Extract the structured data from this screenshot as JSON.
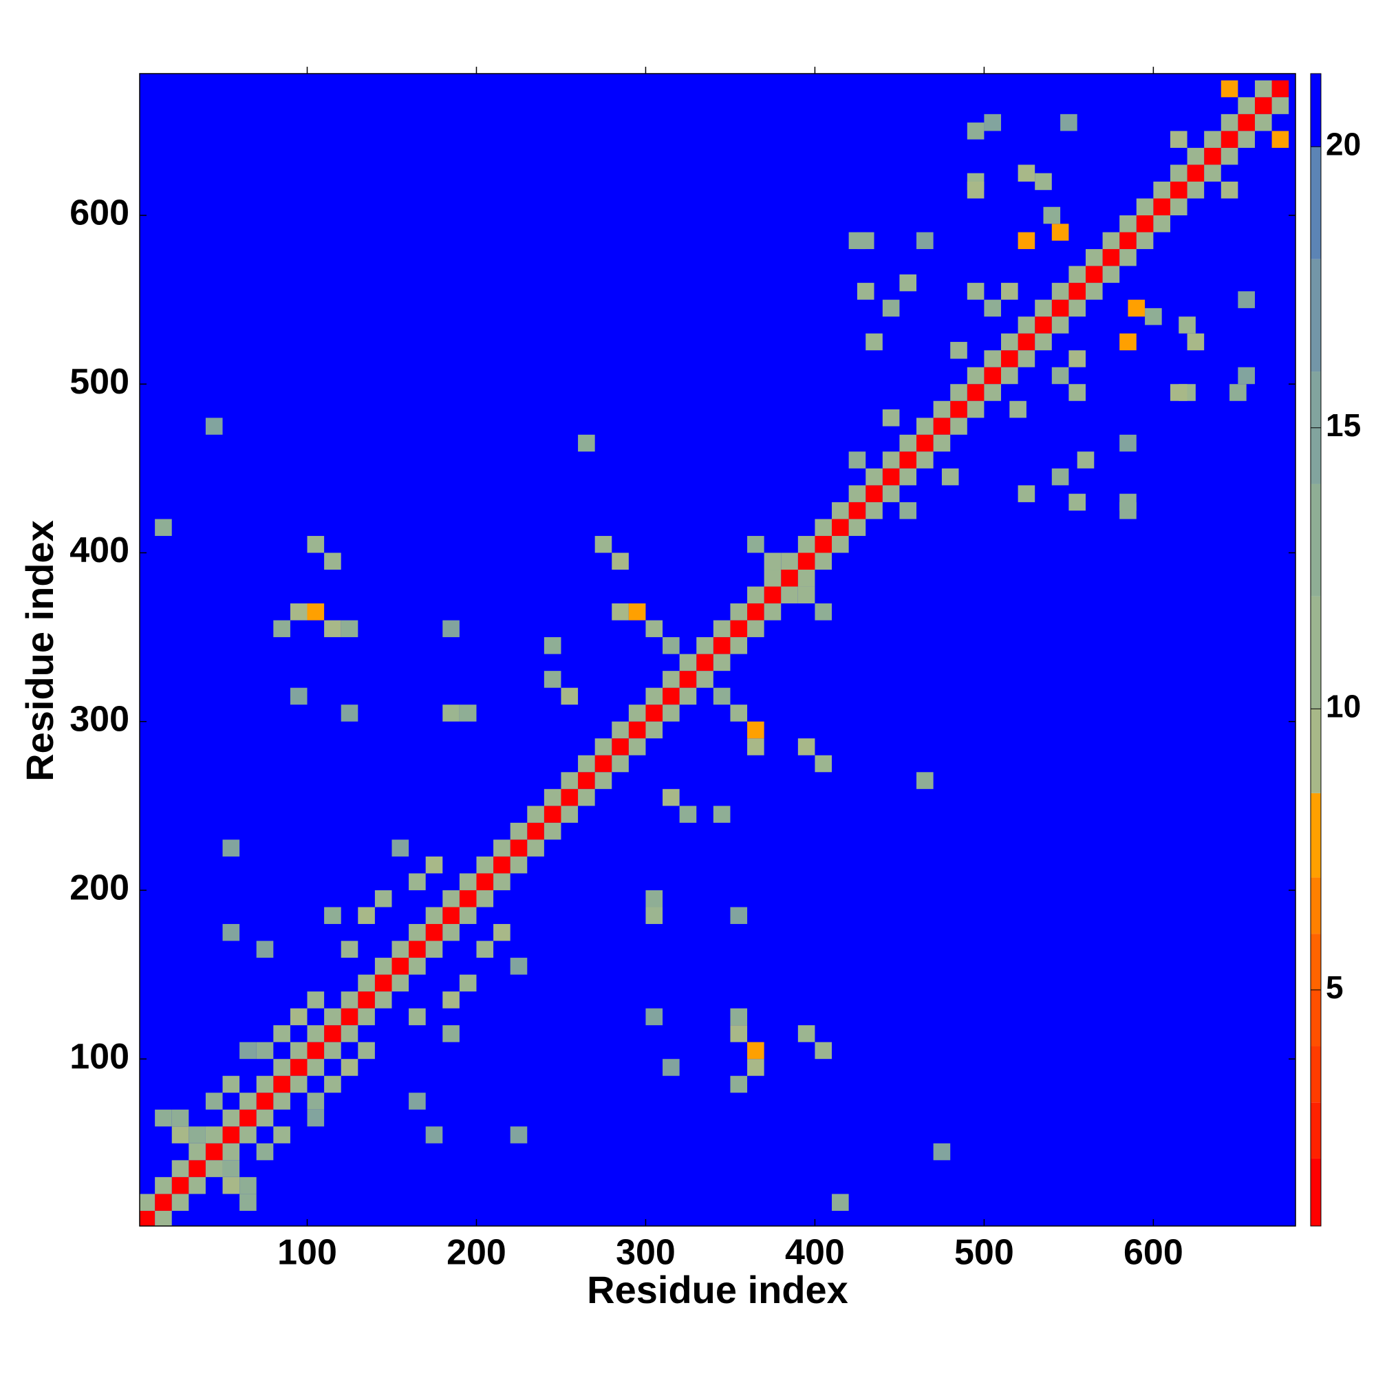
{
  "chart_data": {
    "type": "heatmap",
    "x_label": "Residue index",
    "y_label": "Residue index",
    "xlim": [
      1,
      684
    ],
    "ylim": [
      1,
      684
    ],
    "xticks": [
      100,
      200,
      300,
      400,
      500,
      600
    ],
    "yticks": [
      100,
      200,
      300,
      400,
      500,
      600
    ],
    "colorbar": {
      "levels": [
        0.8,
        2,
        3,
        4,
        5,
        6,
        7,
        8.5,
        10,
        12,
        14,
        16,
        18,
        20,
        21.3
      ],
      "colors": [
        "#ff0000",
        "#ff2200",
        "#ff3c00",
        "#ff5000",
        "#ff6400",
        "#ff8000",
        "#ffa000",
        "#a8b888",
        "#9cb590",
        "#8fae95",
        "#82a49e",
        "#7396a8",
        "#5c84b5",
        "#0000ff"
      ],
      "ticks": [
        5,
        10,
        15,
        20
      ]
    },
    "cells": [
      {
        "x": 5,
        "y": 5,
        "value": 1.5
      },
      {
        "x": 15,
        "y": 15,
        "value": 1.5
      },
      {
        "x": 25,
        "y": 25,
        "value": 1.5
      },
      {
        "x": 35,
        "y": 35,
        "value": 1.5
      },
      {
        "x": 45,
        "y": 45,
        "value": 1.5
      },
      {
        "x": 55,
        "y": 55,
        "value": 1.5
      },
      {
        "x": 65,
        "y": 65,
        "value": 1.5
      },
      {
        "x": 75,
        "y": 75,
        "value": 1.5
      },
      {
        "x": 85,
        "y": 85,
        "value": 1.5
      },
      {
        "x": 95,
        "y": 95,
        "value": 1.5
      },
      {
        "x": 105,
        "y": 105,
        "value": 1.5
      },
      {
        "x": 115,
        "y": 115,
        "value": 1.5
      },
      {
        "x": 125,
        "y": 125,
        "value": 1.5
      },
      {
        "x": 135,
        "y": 135,
        "value": 1.5
      },
      {
        "x": 145,
        "y": 145,
        "value": 1.5
      },
      {
        "x": 155,
        "y": 155,
        "value": 1.5
      },
      {
        "x": 165,
        "y": 165,
        "value": 1.5
      },
      {
        "x": 175,
        "y": 175,
        "value": 1.5
      },
      {
        "x": 185,
        "y": 185,
        "value": 1.5
      },
      {
        "x": 195,
        "y": 195,
        "value": 1.5
      },
      {
        "x": 205,
        "y": 205,
        "value": 1.5
      },
      {
        "x": 215,
        "y": 215,
        "value": 1.5
      },
      {
        "x": 225,
        "y": 225,
        "value": 1.5
      },
      {
        "x": 235,
        "y": 235,
        "value": 1.5
      },
      {
        "x": 245,
        "y": 245,
        "value": 1.5
      },
      {
        "x": 255,
        "y": 255,
        "value": 1.5
      },
      {
        "x": 265,
        "y": 265,
        "value": 1.5
      },
      {
        "x": 275,
        "y": 275,
        "value": 1.5
      },
      {
        "x": 285,
        "y": 285,
        "value": 1.5
      },
      {
        "x": 295,
        "y": 295,
        "value": 1.5
      },
      {
        "x": 305,
        "y": 305,
        "value": 1.5
      },
      {
        "x": 315,
        "y": 315,
        "value": 1.5
      },
      {
        "x": 325,
        "y": 325,
        "value": 1.5
      },
      {
        "x": 335,
        "y": 335,
        "value": 1.5
      },
      {
        "x": 345,
        "y": 345,
        "value": 1.5
      },
      {
        "x": 355,
        "y": 355,
        "value": 1.5
      },
      {
        "x": 365,
        "y": 365,
        "value": 1.5
      },
      {
        "x": 375,
        "y": 375,
        "value": 1.5
      },
      {
        "x": 385,
        "y": 385,
        "value": 1.5
      },
      {
        "x": 395,
        "y": 395,
        "value": 1.5
      },
      {
        "x": 405,
        "y": 405,
        "value": 1.5
      },
      {
        "x": 415,
        "y": 415,
        "value": 1.5
      },
      {
        "x": 425,
        "y": 425,
        "value": 1.5
      },
      {
        "x": 435,
        "y": 435,
        "value": 1.5
      },
      {
        "x": 445,
        "y": 445,
        "value": 1.5
      },
      {
        "x": 455,
        "y": 455,
        "value": 1.5
      },
      {
        "x": 465,
        "y": 465,
        "value": 1.5
      },
      {
        "x": 475,
        "y": 475,
        "value": 1.5
      },
      {
        "x": 485,
        "y": 485,
        "value": 1.5
      },
      {
        "x": 495,
        "y": 495,
        "value": 1.5
      },
      {
        "x": 505,
        "y": 505,
        "value": 1.5
      },
      {
        "x": 515,
        "y": 515,
        "value": 1.5
      },
      {
        "x": 525,
        "y": 525,
        "value": 1.5
      },
      {
        "x": 535,
        "y": 535,
        "value": 1.5
      },
      {
        "x": 545,
        "y": 545,
        "value": 1.5
      },
      {
        "x": 555,
        "y": 555,
        "value": 1.5
      },
      {
        "x": 565,
        "y": 565,
        "value": 1.5
      },
      {
        "x": 575,
        "y": 575,
        "value": 1.5
      },
      {
        "x": 585,
        "y": 585,
        "value": 1.5
      },
      {
        "x": 595,
        "y": 595,
        "value": 1.5
      },
      {
        "x": 605,
        "y": 605,
        "value": 1.5
      },
      {
        "x": 615,
        "y": 615,
        "value": 1.5
      },
      {
        "x": 625,
        "y": 625,
        "value": 1.5
      },
      {
        "x": 635,
        "y": 635,
        "value": 1.5
      },
      {
        "x": 645,
        "y": 645,
        "value": 1.5
      },
      {
        "x": 655,
        "y": 655,
        "value": 1.5
      },
      {
        "x": 665,
        "y": 665,
        "value": 1.5
      },
      {
        "x": 675,
        "y": 675,
        "value": 1.5
      },
      {
        "x": 5,
        "y": 15,
        "value": 11
      },
      {
        "x": 15,
        "y": 25,
        "value": 11
      },
      {
        "x": 25,
        "y": 35,
        "value": 11
      },
      {
        "x": 35,
        "y": 45,
        "value": 11
      },
      {
        "x": 45,
        "y": 55,
        "value": 11
      },
      {
        "x": 55,
        "y": 65,
        "value": 11
      },
      {
        "x": 65,
        "y": 75,
        "value": 11
      },
      {
        "x": 75,
        "y": 85,
        "value": 11
      },
      {
        "x": 85,
        "y": 95,
        "value": 11
      },
      {
        "x": 95,
        "y": 105,
        "value": 11
      },
      {
        "x": 105,
        "y": 115,
        "value": 11
      },
      {
        "x": 115,
        "y": 125,
        "value": 11
      },
      {
        "x": 125,
        "y": 135,
        "value": 11
      },
      {
        "x": 135,
        "y": 145,
        "value": 11
      },
      {
        "x": 145,
        "y": 155,
        "value": 11
      },
      {
        "x": 155,
        "y": 165,
        "value": 11
      },
      {
        "x": 165,
        "y": 175,
        "value": 11
      },
      {
        "x": 175,
        "y": 185,
        "value": 11
      },
      {
        "x": 185,
        "y": 195,
        "value": 11
      },
      {
        "x": 195,
        "y": 205,
        "value": 11
      },
      {
        "x": 205,
        "y": 215,
        "value": 11
      },
      {
        "x": 215,
        "y": 225,
        "value": 11
      },
      {
        "x": 225,
        "y": 235,
        "value": 11
      },
      {
        "x": 235,
        "y": 245,
        "value": 11
      },
      {
        "x": 245,
        "y": 255,
        "value": 11
      },
      {
        "x": 255,
        "y": 265,
        "value": 11
      },
      {
        "x": 265,
        "y": 275,
        "value": 11
      },
      {
        "x": 275,
        "y": 285,
        "value": 11
      },
      {
        "x": 285,
        "y": 295,
        "value": 11
      },
      {
        "x": 295,
        "y": 305,
        "value": 11
      },
      {
        "x": 305,
        "y": 315,
        "value": 11
      },
      {
        "x": 315,
        "y": 325,
        "value": 11
      },
      {
        "x": 325,
        "y": 335,
        "value": 11
      },
      {
        "x": 335,
        "y": 345,
        "value": 11
      },
      {
        "x": 345,
        "y": 355,
        "value": 11
      },
      {
        "x": 355,
        "y": 365,
        "value": 11
      },
      {
        "x": 365,
        "y": 375,
        "value": 11
      },
      {
        "x": 375,
        "y": 385,
        "value": 11
      },
      {
        "x": 385,
        "y": 395,
        "value": 11
      },
      {
        "x": 395,
        "y": 405,
        "value": 11
      },
      {
        "x": 405,
        "y": 415,
        "value": 11
      },
      {
        "x": 415,
        "y": 425,
        "value": 11
      },
      {
        "x": 425,
        "y": 435,
        "value": 11
      },
      {
        "x": 435,
        "y": 445,
        "value": 11
      },
      {
        "x": 445,
        "y": 455,
        "value": 11
      },
      {
        "x": 455,
        "y": 465,
        "value": 11
      },
      {
        "x": 465,
        "y": 475,
        "value": 11
      },
      {
        "x": 475,
        "y": 485,
        "value": 11
      },
      {
        "x": 485,
        "y": 495,
        "value": 11
      },
      {
        "x": 495,
        "y": 505,
        "value": 11
      },
      {
        "x": 505,
        "y": 515,
        "value": 11
      },
      {
        "x": 515,
        "y": 525,
        "value": 11
      },
      {
        "x": 525,
        "y": 535,
        "value": 11
      },
      {
        "x": 535,
        "y": 545,
        "value": 11
      },
      {
        "x": 545,
        "y": 555,
        "value": 11
      },
      {
        "x": 555,
        "y": 565,
        "value": 11
      },
      {
        "x": 565,
        "y": 575,
        "value": 11
      },
      {
        "x": 575,
        "y": 585,
        "value": 11
      },
      {
        "x": 585,
        "y": 595,
        "value": 11
      },
      {
        "x": 595,
        "y": 605,
        "value": 11
      },
      {
        "x": 605,
        "y": 615,
        "value": 11
      },
      {
        "x": 615,
        "y": 625,
        "value": 11
      },
      {
        "x": 625,
        "y": 635,
        "value": 11
      },
      {
        "x": 635,
        "y": 645,
        "value": 11
      },
      {
        "x": 645,
        "y": 655,
        "value": 11
      },
      {
        "x": 655,
        "y": 665,
        "value": 11
      },
      {
        "x": 665,
        "y": 675,
        "value": 11
      },
      {
        "x": 15,
        "y": 65,
        "value": 13
      },
      {
        "x": 25,
        "y": 55,
        "value": 9
      },
      {
        "x": 35,
        "y": 55,
        "value": 12
      },
      {
        "x": 25,
        "y": 65,
        "value": 13
      },
      {
        "x": 45,
        "y": 75,
        "value": 12
      },
      {
        "x": 55,
        "y": 85,
        "value": 11
      },
      {
        "x": 65,
        "y": 105,
        "value": 14
      },
      {
        "x": 15,
        "y": 415,
        "value": 12
      },
      {
        "x": 45,
        "y": 475,
        "value": 14
      },
      {
        "x": 265,
        "y": 465,
        "value": 13
      },
      {
        "x": 105,
        "y": 405,
        "value": 10
      },
      {
        "x": 115,
        "y": 395,
        "value": 11
      },
      {
        "x": 95,
        "y": 365,
        "value": 9
      },
      {
        "x": 105,
        "y": 365,
        "value": 8
      },
      {
        "x": 115,
        "y": 355,
        "value": 9
      },
      {
        "x": 85,
        "y": 355,
        "value": 12
      },
      {
        "x": 125,
        "y": 355,
        "value": 13
      },
      {
        "x": 185,
        "y": 305,
        "value": 11
      },
      {
        "x": 195,
        "y": 305,
        "value": 13
      },
      {
        "x": 185,
        "y": 355,
        "value": 14
      },
      {
        "x": 245,
        "y": 345,
        "value": 13
      },
      {
        "x": 245,
        "y": 325,
        "value": 12
      },
      {
        "x": 255,
        "y": 315,
        "value": 9
      },
      {
        "x": 275,
        "y": 405,
        "value": 10
      },
      {
        "x": 285,
        "y": 395,
        "value": 9
      },
      {
        "x": 95,
        "y": 315,
        "value": 15
      },
      {
        "x": 125,
        "y": 305,
        "value": 15
      },
      {
        "x": 285,
        "y": 365,
        "value": 9
      },
      {
        "x": 295,
        "y": 365,
        "value": 8
      },
      {
        "x": 305,
        "y": 355,
        "value": 10
      },
      {
        "x": 315,
        "y": 345,
        "value": 12
      },
      {
        "x": 85,
        "y": 115,
        "value": 10
      },
      {
        "x": 95,
        "y": 125,
        "value": 9
      },
      {
        "x": 105,
        "y": 135,
        "value": 11
      },
      {
        "x": 75,
        "y": 105,
        "value": 12
      },
      {
        "x": 125,
        "y": 165,
        "value": 10
      },
      {
        "x": 135,
        "y": 185,
        "value": 9
      },
      {
        "x": 145,
        "y": 195,
        "value": 10
      },
      {
        "x": 165,
        "y": 205,
        "value": 11
      },
      {
        "x": 175,
        "y": 215,
        "value": 9
      },
      {
        "x": 155,
        "y": 225,
        "value": 14
      },
      {
        "x": 115,
        "y": 185,
        "value": 13
      },
      {
        "x": 75,
        "y": 165,
        "value": 14
      },
      {
        "x": 55,
        "y": 175,
        "value": 14
      },
      {
        "x": 55,
        "y": 225,
        "value": 14
      },
      {
        "x": 375,
        "y": 395,
        "value": 10
      },
      {
        "x": 365,
        "y": 405,
        "value": 12
      },
      {
        "x": 445,
        "y": 480,
        "value": 10
      },
      {
        "x": 425,
        "y": 455,
        "value": 12
      },
      {
        "x": 435,
        "y": 525,
        "value": 11
      },
      {
        "x": 445,
        "y": 545,
        "value": 12
      },
      {
        "x": 455,
        "y": 560,
        "value": 10
      },
      {
        "x": 425,
        "y": 585,
        "value": 12
      },
      {
        "x": 465,
        "y": 585,
        "value": 14
      },
      {
        "x": 485,
        "y": 520,
        "value": 11
      },
      {
        "x": 495,
        "y": 555,
        "value": 10
      },
      {
        "x": 505,
        "y": 545,
        "value": 12
      },
      {
        "x": 515,
        "y": 555,
        "value": 9
      },
      {
        "x": 525,
        "y": 585,
        "value": 8
      },
      {
        "x": 545,
        "y": 590,
        "value": 8
      },
      {
        "x": 535,
        "y": 620,
        "value": 11
      },
      {
        "x": 495,
        "y": 620,
        "value": 10
      },
      {
        "x": 525,
        "y": 625,
        "value": 9
      },
      {
        "x": 540,
        "y": 600,
        "value": 12
      },
      {
        "x": 505,
        "y": 655,
        "value": 14
      },
      {
        "x": 550,
        "y": 655,
        "value": 15
      },
      {
        "x": 430,
        "y": 555,
        "value": 10
      },
      {
        "x": 430,
        "y": 585,
        "value": 12
      },
      {
        "x": 495,
        "y": 615,
        "value": 9
      },
      {
        "x": 495,
        "y": 650,
        "value": 13
      },
      {
        "x": 615,
        "y": 645,
        "value": 9
      },
      {
        "x": 645,
        "y": 675,
        "value": 8
      }
    ]
  }
}
